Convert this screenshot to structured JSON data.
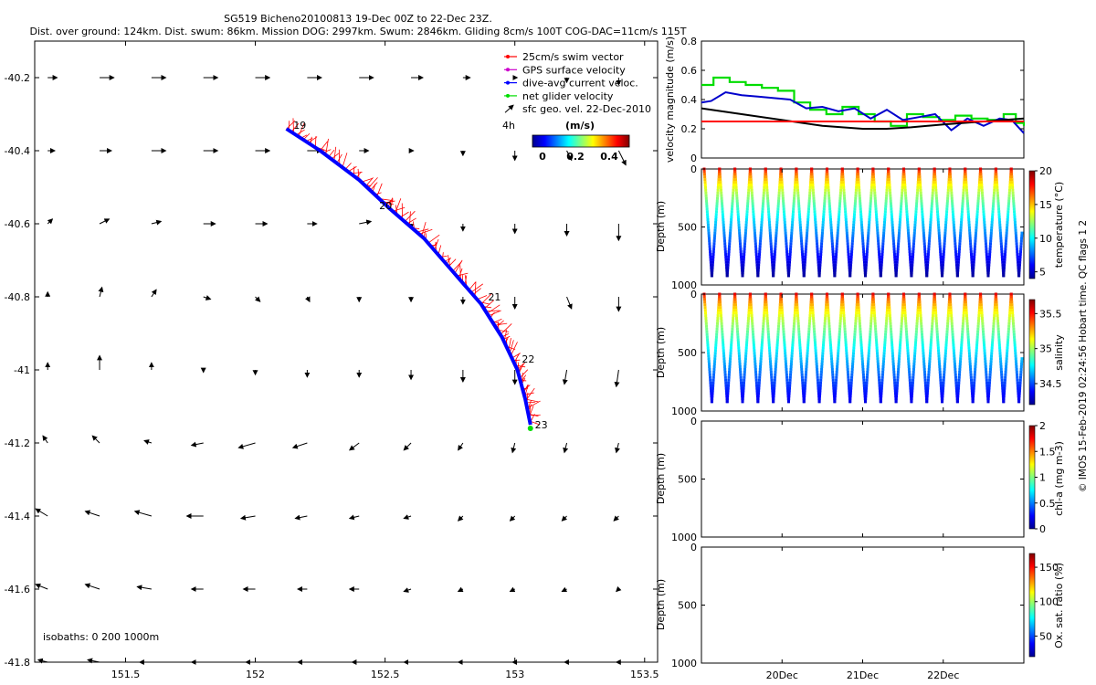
{
  "header": {
    "title": "SG519 Bicheno20100813 19-Dec 00Z to 22-Dec 23Z.",
    "subtitle": "Dist. over ground: 124km. Dist. swum: 86km. Mission DOG: 2997km. Swum: 2846km. Gliding 8cm/s 100T COG-DAC=11cm/s 115T"
  },
  "footer": {
    "credit": "© IMOS 15-Feb-2019 02:24:56 Hobart time. QC flags 1  2"
  },
  "colors": {
    "track": "#0000ff",
    "swim_vector": "#ff0000",
    "gps_vel": "#cc00cc",
    "net_glider": "#00dd00",
    "dac_line": "#0000cc",
    "mean_line": "#ff0000"
  },
  "chart_data": [
    {
      "type": "scatter",
      "id": "map",
      "xlim": [
        151.15,
        153.55
      ],
      "ylim": [
        -41.8,
        -40.1
      ],
      "xticks": [
        151.5,
        152,
        152.5,
        153,
        153.5
      ],
      "xtick_labels": [
        "151.5",
        "152",
        "152.5",
        "153",
        "153.5"
      ],
      "yticks": [
        -40.2,
        -40.4,
        -40.6,
        -40.8,
        -41,
        -41.2,
        -41.4,
        -41.6,
        -41.8
      ],
      "ytick_labels": [
        "-40.2",
        "-40.4",
        "-40.6",
        "-40.8",
        "-41",
        "-41.2",
        "-41.4",
        "-41.6",
        "-41.8"
      ],
      "legend": {
        "placement": "top-right",
        "items": [
          {
            "label": "25cm/s swim vector",
            "color": "#ff0000"
          },
          {
            "label": "GPS surface velocity",
            "color": "#cc00cc"
          },
          {
            "label": "dive-avg current veloc.",
            "color": "#0000ff"
          },
          {
            "label": "net glider velocity",
            "color": "#00dd00"
          },
          {
            "label": "sfc geo. vel. 22-Dec-2010",
            "color": "#000000"
          }
        ]
      },
      "scale_label": "4h",
      "colorbar": {
        "unit": "(m/s)",
        "tick_labels": [
          "0",
          "0.2",
          "0.4"
        ],
        "range": [
          0,
          0.5
        ]
      },
      "isobaths_label": "isobaths: 0   200  1000m",
      "track": [
        [
          152.12,
          -40.34
        ],
        [
          152.25,
          -40.4
        ],
        [
          152.4,
          -40.48
        ],
        [
          152.52,
          -40.56
        ],
        [
          152.65,
          -40.64
        ],
        [
          152.76,
          -40.73
        ],
        [
          152.87,
          -40.82
        ],
        [
          152.95,
          -40.91
        ],
        [
          153.01,
          -41.0
        ],
        [
          153.04,
          -41.08
        ],
        [
          153.06,
          -41.15
        ]
      ],
      "day_labels": [
        {
          "label": "19",
          "lon": 152.14,
          "lat": -40.33
        },
        {
          "label": "20",
          "lon": 152.47,
          "lat": -40.55
        },
        {
          "label": "21",
          "lon": 152.89,
          "lat": -40.8
        },
        {
          "label": "22",
          "lon": 153.02,
          "lat": -40.97
        },
        {
          "label": "23",
          "lon": 153.07,
          "lat": -41.15
        }
      ],
      "current_grid": {
        "lons": [
          151.2,
          151.4,
          151.6,
          151.8,
          152.0,
          152.2,
          152.4,
          152.6,
          152.8,
          153.0,
          153.2,
          153.4
        ],
        "lats": [
          -40.2,
          -40.4,
          -40.6,
          -40.8,
          -41.0,
          -41.2,
          -41.4,
          -41.6,
          -41.8
        ],
        "u": [
          [
            4,
            6,
            6,
            6,
            6,
            6,
            6,
            5,
            3,
            1,
            0,
            0
          ],
          [
            3,
            5,
            6,
            6,
            6,
            6,
            4,
            1,
            0,
            0,
            2,
            3
          ],
          [
            2,
            4,
            4,
            5,
            5,
            4,
            5,
            0,
            0,
            0,
            0,
            0
          ],
          [
            0,
            1,
            2,
            3,
            2,
            1,
            0,
            0,
            0,
            0,
            2,
            0
          ],
          [
            0,
            0,
            0,
            0,
            0,
            0,
            0,
            0,
            0,
            0,
            -1,
            -1
          ],
          [
            -2,
            -3,
            -3,
            -5,
            -7,
            -6,
            -4,
            -3,
            -2,
            -1,
            -1,
            -1
          ],
          [
            -5,
            -6,
            -7,
            -7,
            -6,
            -5,
            -4,
            -3,
            -2,
            -2,
            -2,
            -2
          ],
          [
            -5,
            -6,
            -6,
            -5,
            -5,
            -4,
            -4,
            -3,
            -2,
            -2,
            -2,
            -1
          ],
          [
            -4,
            -5,
            -5,
            -5,
            -4,
            -4,
            -3,
            -3,
            -2,
            -1,
            -1,
            -1
          ]
        ],
        "v": [
          [
            0,
            0,
            0,
            0,
            0,
            0,
            0,
            0,
            0,
            0,
            -2,
            -3
          ],
          [
            0,
            0,
            0,
            0,
            0,
            0,
            0,
            0,
            -2,
            -4,
            -4,
            -6
          ],
          [
            2,
            2,
            1,
            0,
            0,
            0,
            1,
            -2,
            -3,
            -4,
            -5,
            -7
          ],
          [
            2,
            4,
            3,
            -1,
            -2,
            -2,
            -2,
            -2,
            -3,
            -5,
            -5,
            -6
          ],
          [
            3,
            6,
            3,
            -1,
            -2,
            -3,
            -3,
            -4,
            -5,
            -6,
            -6,
            -7
          ],
          [
            3,
            3,
            1,
            -1,
            -2,
            -2,
            -3,
            -3,
            -3,
            -4,
            -4,
            -4
          ],
          [
            3,
            2,
            2,
            0,
            -1,
            -1,
            -1,
            -1,
            -2,
            -2,
            -2,
            -2
          ],
          [
            2,
            2,
            1,
            0,
            0,
            0,
            0,
            -1,
            -1,
            -1,
            -1,
            -1
          ],
          [
            1,
            1,
            0,
            0,
            0,
            0,
            0,
            0,
            0,
            0,
            0,
            0
          ]
        ]
      }
    },
    {
      "type": "line",
      "id": "velocity",
      "ylabel": "velocity magnitude (m/s)",
      "ylim": [
        0,
        0.8
      ],
      "yticks": [
        0,
        0.2,
        0.4,
        0.6,
        0.8
      ],
      "ytick_labels": [
        "0",
        "0.2",
        "0.4",
        "0.6",
        "0.8"
      ],
      "xlim": [
        0,
        4
      ],
      "series": [
        {
          "color": "#00dd00",
          "step": true,
          "x": [
            0,
            0.15,
            0.35,
            0.55,
            0.75,
            0.95,
            1.15,
            1.35,
            1.55,
            1.75,
            1.95,
            2.15,
            2.35,
            2.55,
            2.75,
            2.95,
            3.15,
            3.35,
            3.55,
            3.75,
            3.9,
            4.0
          ],
          "y": [
            0.5,
            0.55,
            0.52,
            0.5,
            0.48,
            0.46,
            0.38,
            0.33,
            0.3,
            0.35,
            0.3,
            0.25,
            0.22,
            0.3,
            0.28,
            0.26,
            0.29,
            0.27,
            0.26,
            0.3,
            0.24,
            0.22
          ]
        },
        {
          "color": "#0000cc",
          "step": false,
          "x": [
            0,
            0.12,
            0.3,
            0.5,
            0.7,
            0.9,
            1.1,
            1.3,
            1.5,
            1.7,
            1.9,
            2.1,
            2.3,
            2.5,
            2.7,
            2.9,
            3.1,
            3.3,
            3.5,
            3.7,
            3.85,
            4.0
          ],
          "y": [
            0.38,
            0.39,
            0.45,
            0.43,
            0.42,
            0.41,
            0.4,
            0.34,
            0.35,
            0.32,
            0.34,
            0.27,
            0.33,
            0.26,
            0.28,
            0.3,
            0.19,
            0.27,
            0.22,
            0.27,
            0.26,
            0.17
          ]
        },
        {
          "color": "#000000",
          "step": false,
          "x": [
            0,
            0.5,
            1.0,
            1.5,
            2.0,
            2.3,
            2.6,
            3.0,
            3.5,
            4.0
          ],
          "y": [
            0.34,
            0.3,
            0.26,
            0.22,
            0.2,
            0.2,
            0.21,
            0.23,
            0.25,
            0.27
          ]
        },
        {
          "color": "#ff0000",
          "step": false,
          "x": [
            0,
            4.0
          ],
          "y": [
            0.25,
            0.25
          ]
        }
      ]
    },
    {
      "type": "scatter",
      "id": "temperature",
      "ylabel": "Depth (m)",
      "ylim": [
        1000,
        0
      ],
      "yticks": [
        0,
        500,
        1000
      ],
      "ytick_labels": [
        "0",
        "500",
        "1000"
      ],
      "colorbar": {
        "label": "temperature (°C)",
        "range": [
          4,
          20
        ],
        "ticks": [
          5,
          10,
          15,
          20
        ],
        "tick_labels": [
          "5",
          "10",
          "15",
          "20"
        ]
      },
      "dives": 21,
      "max_depth": 920,
      "surface_value": 18.5,
      "deep_value": 4.5
    },
    {
      "type": "scatter",
      "id": "salinity",
      "ylabel": "Depth (m)",
      "ylim": [
        1000,
        0
      ],
      "yticks": [
        0,
        500,
        1000
      ],
      "ytick_labels": [
        "0",
        "500",
        "1000"
      ],
      "colorbar": {
        "label": "salinity",
        "range": [
          34.2,
          35.7
        ],
        "ticks": [
          34.5,
          35,
          35.5
        ],
        "tick_labels": [
          "34.5",
          "35",
          "35.5"
        ]
      },
      "dives": 21,
      "max_depth": 920,
      "surface_value": 35.55,
      "deep_value": 34.35
    },
    {
      "type": "scatter",
      "id": "chla",
      "ylabel": "Depth (m)",
      "ylim": [
        1000,
        0
      ],
      "yticks": [
        0,
        500,
        1000
      ],
      "ytick_labels": [
        "0",
        "500",
        "1000"
      ],
      "colorbar": {
        "label": "chl-a (mg m-3)",
        "range": [
          0,
          2
        ],
        "ticks": [
          0,
          0.5,
          1,
          1.5,
          2
        ],
        "tick_labels": [
          "0",
          "0.5",
          "1",
          "1.5",
          "2"
        ]
      }
    },
    {
      "type": "scatter",
      "id": "oxygen",
      "ylabel": "Depth (m)",
      "ylim": [
        1000,
        0
      ],
      "yticks": [
        0,
        500,
        1000
      ],
      "ytick_labels": [
        "0",
        "500",
        "1000"
      ],
      "xtick_labels": [
        "20Dec",
        "21Dec",
        "22Dec"
      ],
      "xticks": [
        1,
        2,
        3
      ],
      "colorbar": {
        "label": "Ox. sat. ratio (%)",
        "range": [
          20,
          170
        ],
        "ticks": [
          50,
          100,
          150
        ],
        "tick_labels": [
          "50",
          "100",
          "150"
        ]
      }
    }
  ]
}
